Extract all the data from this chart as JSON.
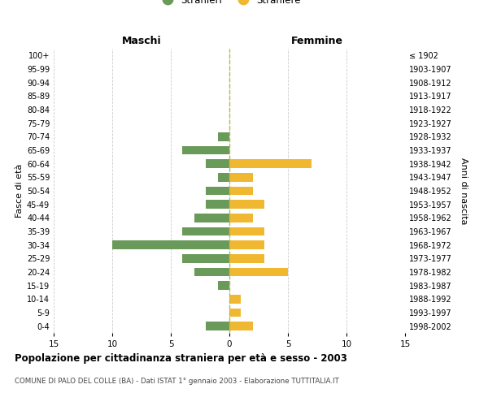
{
  "age_groups": [
    "0-4",
    "5-9",
    "10-14",
    "15-19",
    "20-24",
    "25-29",
    "30-34",
    "35-39",
    "40-44",
    "45-49",
    "50-54",
    "55-59",
    "60-64",
    "65-69",
    "70-74",
    "75-79",
    "80-84",
    "85-89",
    "90-94",
    "95-99",
    "100+"
  ],
  "birth_years": [
    "1998-2002",
    "1993-1997",
    "1988-1992",
    "1983-1987",
    "1978-1982",
    "1973-1977",
    "1968-1972",
    "1963-1967",
    "1958-1962",
    "1953-1957",
    "1948-1952",
    "1943-1947",
    "1938-1942",
    "1933-1937",
    "1928-1932",
    "1923-1927",
    "1918-1922",
    "1913-1917",
    "1908-1912",
    "1903-1907",
    "≤ 1902"
  ],
  "maschi": [
    2,
    0,
    0,
    1,
    3,
    4,
    10,
    4,
    3,
    2,
    2,
    1,
    2,
    4,
    1,
    0,
    0,
    0,
    0,
    0,
    0
  ],
  "femmine": [
    2,
    1,
    1,
    0,
    5,
    3,
    3,
    3,
    2,
    3,
    2,
    2,
    7,
    0,
    0,
    0,
    0,
    0,
    0,
    0,
    0
  ],
  "maschi_color": "#6a9a5a",
  "femmine_color": "#f0b830",
  "title": "Popolazione per cittadinanza straniera per età e sesso - 2003",
  "subtitle": "COMUNE DI PALO DEL COLLE (BA) - Dati ISTAT 1° gennaio 2003 - Elaborazione TUTTITALIA.IT",
  "xlabel_left": "Maschi",
  "xlabel_right": "Femmine",
  "ylabel_left": "Fasce di età",
  "ylabel_right": "Anni di nascita",
  "xlim": 15,
  "background_color": "#ffffff",
  "grid_color": "#cccccc",
  "dashed_line_color": "#b8b850"
}
